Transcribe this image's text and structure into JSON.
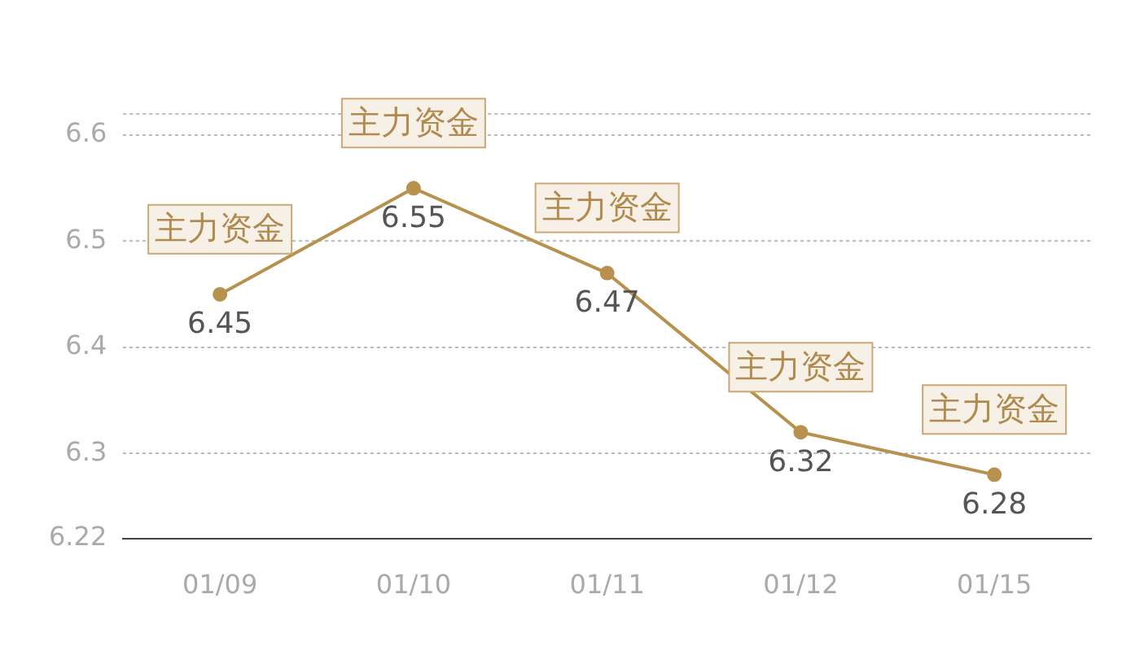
{
  "chart_data": {
    "type": "line",
    "categories": [
      "01/09",
      "01/10",
      "01/11",
      "01/12",
      "01/15"
    ],
    "series": [
      {
        "color": "#b8914f",
        "values": [
          6.45,
          6.55,
          6.47,
          6.32,
          6.28
        ]
      }
    ],
    "ylim": [
      6.22,
      6.62
    ],
    "yticks": [
      6.22,
      6.3,
      6.4,
      6.5,
      6.6
    ],
    "grid": "y",
    "marker": "circle",
    "line_style": "solid",
    "data_labels": true,
    "annotations": [
      {
        "text": "主力资金",
        "x": "01/09",
        "y": 6.45
      },
      {
        "text": "主力资金",
        "x": "01/10",
        "y": 6.55
      },
      {
        "text": "主力资金",
        "x": "01/11",
        "y": 6.47
      },
      {
        "text": "主力资金",
        "x": "01/12",
        "y": 6.32
      },
      {
        "text": "主力资金",
        "x": "01/15",
        "y": 6.28
      }
    ]
  }
}
